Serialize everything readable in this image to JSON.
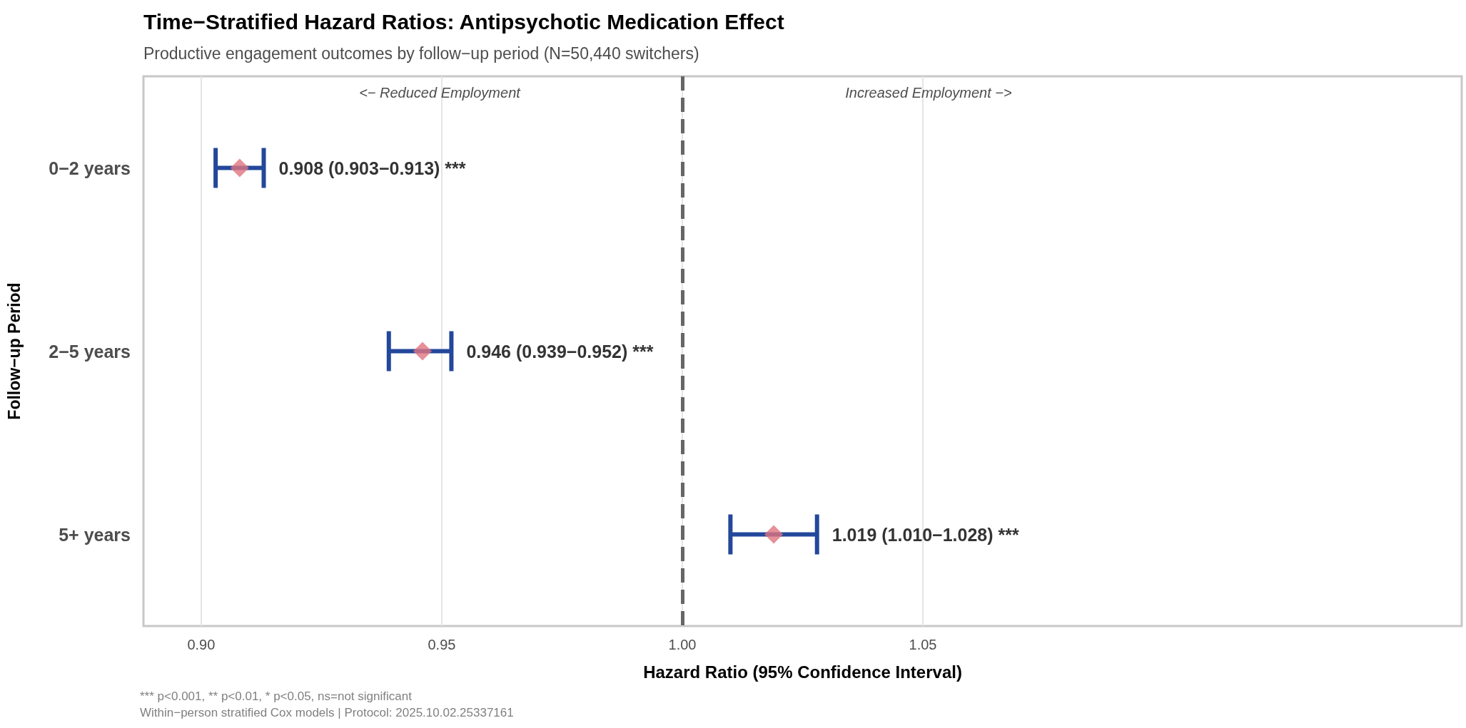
{
  "chart_data": {
    "type": "scatter",
    "orientation": "horizontal",
    "title": "Time−Stratified Hazard Ratios: Antipsychotic Medication Effect",
    "subtitle": "Productive engagement outcomes by follow−up period (N=50,440 switchers)",
    "xlabel": "Hazard Ratio (95% Confidence Interval)",
    "ylabel": "Follow−up Period",
    "categories": [
      "0−2 years",
      "2−5 years",
      "5+ years"
    ],
    "series": [
      {
        "color": "#e07480",
        "values": [
          0.908,
          0.946,
          1.019
        ],
        "errors": [
          [
            0.903,
            0.913
          ],
          [
            0.939,
            0.952
          ],
          [
            1.01,
            1.028
          ]
        ],
        "value_labels": [
          "0.908 (0.903−0.913) ***",
          "0.946 (0.939−0.952) ***",
          "1.019 (1.010−1.028) ***"
        ]
      }
    ],
    "marker": "diamond",
    "xlim": [
      0.888,
      1.162
    ],
    "xticks": [
      {
        "value": 0.9,
        "label": "0.90"
      },
      {
        "value": 0.95,
        "label": "0.95"
      },
      {
        "value": 1.0,
        "label": "1.00"
      },
      {
        "value": 1.05,
        "label": "1.05"
      }
    ],
    "ref_lines": [
      {
        "axis": "x",
        "value": 1.0,
        "color": "#666666",
        "line_style": "dashed"
      }
    ],
    "grid": "x",
    "annotations": [
      "<− Reduced Employment",
      "Increased Employment −>",
      "*** p<0.001, ** p<0.01, * p<0.05, ns=not significant",
      "Within−person stratified Cox models | Protocol: 2025.10.02.25337161"
    ]
  }
}
